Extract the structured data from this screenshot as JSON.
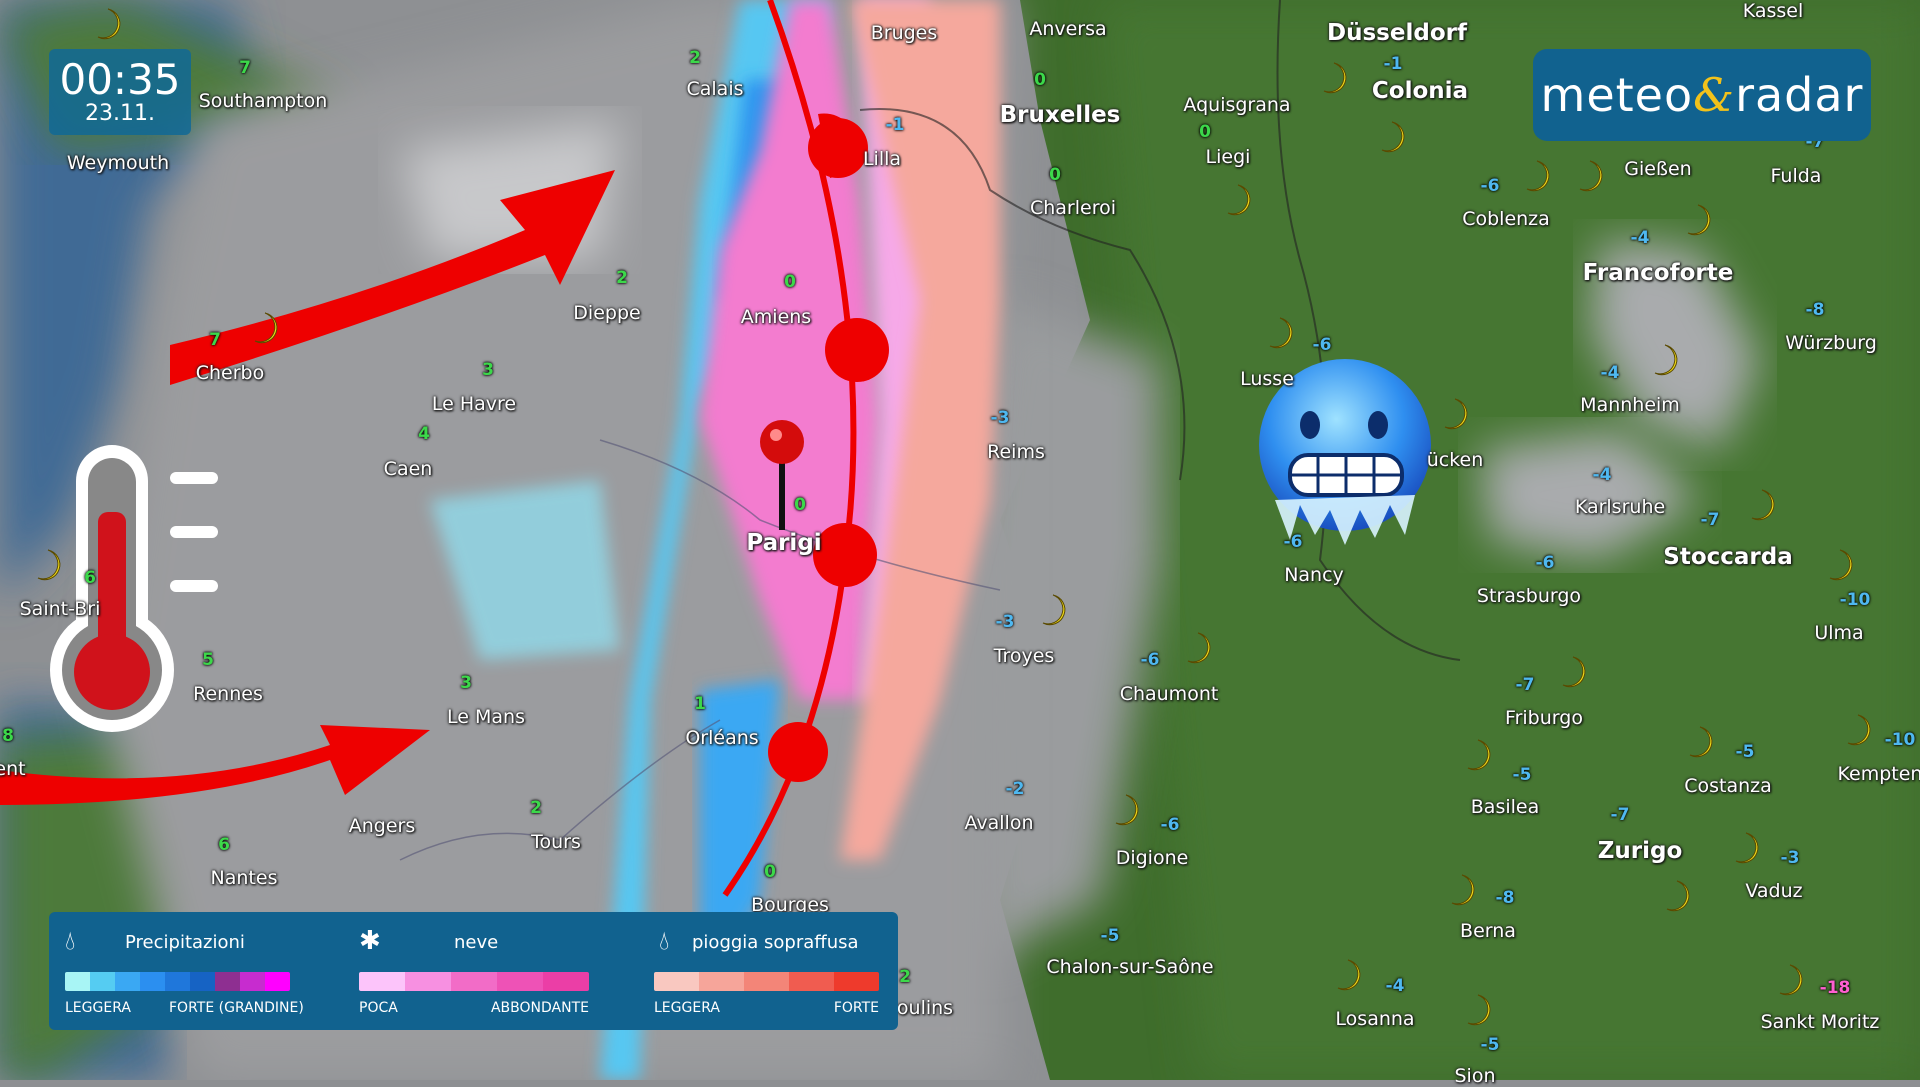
{
  "clock": {
    "time": "00:35",
    "date": "23.11."
  },
  "logo": {
    "part1": "meteo",
    "amp": "&",
    "part2": "radar"
  },
  "legend": {
    "precipitation": {
      "icon": "drop-icon",
      "title": "Precipitazioni",
      "low": "LEGGERA",
      "high": "FORTE (GRANDINE)",
      "colors": [
        "#a8f5f5",
        "#55ccf2",
        "#3aa8f3",
        "#2b8ff0",
        "#1f77db",
        "#1663c4",
        "#8e2f91",
        "#c72ccf",
        "#ff00ff"
      ]
    },
    "snow": {
      "icon": "asterisk-icon",
      "title": "neve",
      "low": "POCA",
      "high": "ABBONDANTE",
      "colors": [
        "#fcc4fa",
        "#f790e1",
        "#f26cc7",
        "#ee52b6",
        "#eb3ea6"
      ]
    },
    "freezing_rain": {
      "icon": "drop-icon",
      "title": "pioggia sopraffusa",
      "low": "LEGGERA",
      "high": "FORTE",
      "colors": [
        "#f9c8c0",
        "#f6a59a",
        "#f38578",
        "#f05c50",
        "#ee3a2c"
      ]
    }
  },
  "colors": {
    "front": "#ee0000",
    "panel": "#11628f",
    "logo_amp": "#f2c21b",
    "temp_positive": "#3cd84a",
    "temp_negative": "#4fb8f0",
    "temp_extreme": "#ff5fd0"
  },
  "cities": [
    {
      "name": "Southampton",
      "temp": "7"
    },
    {
      "name": "Weymouth",
      "temp": ""
    },
    {
      "name": "Calais",
      "temp": "2"
    },
    {
      "name": "Bruges",
      "temp": ""
    },
    {
      "name": "Anversa",
      "temp": ""
    },
    {
      "name": "Bruxelles",
      "temp": "0"
    },
    {
      "name": "Lilla",
      "temp": "-1"
    },
    {
      "name": "Charleroi",
      "temp": "0"
    },
    {
      "name": "Dieppe",
      "temp": "2"
    },
    {
      "name": "Amiens",
      "temp": "0"
    },
    {
      "name": "Le Havre",
      "temp": "3"
    },
    {
      "name": "Caen",
      "temp": "4"
    },
    {
      "name": "Cherbo",
      "temp": "7"
    },
    {
      "name": "Reims",
      "temp": "-3"
    },
    {
      "name": "Parigi",
      "temp": "0"
    },
    {
      "name": "Troyes",
      "temp": "-3"
    },
    {
      "name": "Chaumont",
      "temp": "-6"
    },
    {
      "name": "Nancy",
      "temp": "-6"
    },
    {
      "name": "Le Mans",
      "temp": "3"
    },
    {
      "name": "Rennes",
      "temp": "5"
    },
    {
      "name": "Saint-Bri",
      "temp": "6"
    },
    {
      "name": "Orléans",
      "temp": "1"
    },
    {
      "name": "Angers",
      "temp": ""
    },
    {
      "name": "Tours",
      "temp": "2"
    },
    {
      "name": "Nantes",
      "temp": "6"
    },
    {
      "name": "Bourges",
      "temp": "0"
    },
    {
      "name": "Avallon",
      "temp": "-2"
    },
    {
      "name": "Digione",
      "temp": "-6"
    },
    {
      "name": "Chalon-sur-Saône",
      "temp": "-5"
    },
    {
      "name": "oulins",
      "temp": "2"
    },
    {
      "name": "Düsseldorf",
      "temp": ""
    },
    {
      "name": "Colonia",
      "temp": "-1"
    },
    {
      "name": "Aquisgrana",
      "temp": "0"
    },
    {
      "name": "Liegi",
      "temp": ""
    },
    {
      "name": "Coblenza",
      "temp": "-6"
    },
    {
      "name": "Gießen",
      "temp": ""
    },
    {
      "name": "Fulda",
      "temp": "-7"
    },
    {
      "name": "Kassel",
      "temp": ""
    },
    {
      "name": "Francoforte",
      "temp": "-4"
    },
    {
      "name": "Würzburg",
      "temp": "-8"
    },
    {
      "name": "Mannheim",
      "temp": "-4"
    },
    {
      "name": "Karlsruhe",
      "temp": "-4"
    },
    {
      "name": "Stoccarda",
      "temp": "-7"
    },
    {
      "name": "Strasburgo",
      "temp": "-6"
    },
    {
      "name": "Ulma",
      "temp": "-10"
    },
    {
      "name": "Friburgo",
      "temp": "-7"
    },
    {
      "name": "Basilea",
      "temp": "-5"
    },
    {
      "name": "Costanza",
      "temp": "-5"
    },
    {
      "name": "Kempten",
      "temp": "-10"
    },
    {
      "name": "Zurigo",
      "temp": "-7"
    },
    {
      "name": "Vaduz",
      "temp": "-3"
    },
    {
      "name": "Berna",
      "temp": "-8"
    },
    {
      "name": "Losanna",
      "temp": "-4"
    },
    {
      "name": "Sion",
      "temp": "-5"
    },
    {
      "name": "Sankt Moritz",
      "temp": "-18"
    },
    {
      "name": "ücken",
      "temp": ""
    },
    {
      "name": "Lusse",
      "temp": "-6"
    },
    {
      "name": "ent",
      "temp": "8"
    }
  ],
  "overlays": {
    "arrows": "arrow-icon",
    "front": "warm-front-icon",
    "thermometer": "thermometer-icon",
    "emoji": "freezing-face-icon",
    "pin": "location-pin-icon"
  }
}
